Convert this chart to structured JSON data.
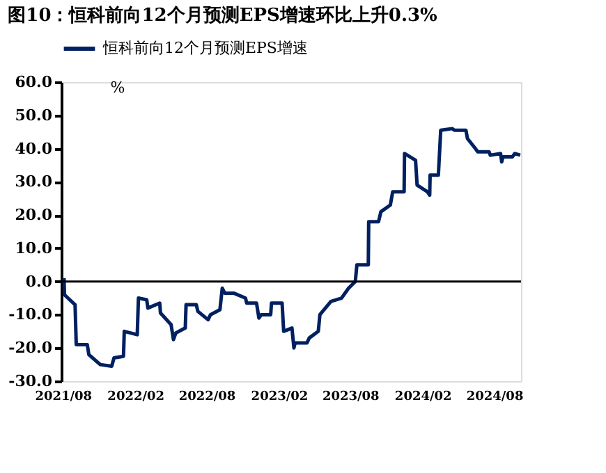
{
  "chart_data": {
    "type": "line",
    "title": "图10：恒科前向12个月预测EPS增速环比上升0.3%",
    "ylabel": "%",
    "x": [
      "2021-08-04",
      "2021-08-05",
      "2021-09-01",
      "2021-09-04",
      "2021-10-02",
      "2021-10-06",
      "2021-11-04",
      "2021-12-03",
      "2021-12-09",
      "2022-01-02",
      "2022-01-04",
      "2022-02-06",
      "2022-02-09",
      "2022-03-02",
      "2022-03-05",
      "2022-04-04",
      "2022-04-06",
      "2022-05-03",
      "2022-05-09",
      "2022-05-15",
      "2022-06-08",
      "2022-06-10",
      "2022-07-06",
      "2022-07-10",
      "2022-08-05",
      "2022-08-11",
      "2022-09-04",
      "2022-09-10",
      "2022-09-16",
      "2022-10-09",
      "2022-11-08",
      "2022-11-11",
      "2022-12-06",
      "2022-12-12",
      "2022-12-18",
      "2023-01-11",
      "2023-01-13",
      "2023-02-09",
      "2023-02-13",
      "2023-03-06",
      "2023-03-11",
      "2023-03-14",
      "2023-04-13",
      "2023-04-19",
      "2023-05-12",
      "2023-05-16",
      "2023-06-13",
      "2023-07-10",
      "2023-07-28",
      "2023-08-14",
      "2023-08-18",
      "2023-09-16",
      "2023-09-17",
      "2023-10-12",
      "2023-10-18",
      "2023-11-11",
      "2023-11-17",
      "2023-12-16",
      "2023-12-17",
      "2024-01-14",
      "2024-01-18",
      "2024-02-13",
      "2024-02-19",
      "2024-02-20",
      "2024-03-12",
      "2024-03-18",
      "2024-04-16",
      "2024-04-22",
      "2024-05-21",
      "2024-05-25",
      "2024-06-14",
      "2024-06-20",
      "2024-07-19",
      "2024-07-22",
      "2024-08-17",
      "2024-08-20",
      "2024-08-23",
      "2024-09-16",
      "2024-09-22",
      "2024-10-06"
    ],
    "series": [
      {
        "name": "恒科前向12个月预测EPS增速",
        "color": "#002060",
        "values": [
          1.0,
          -4,
          -7,
          -19,
          -19,
          -22,
          -25,
          -25.5,
          -23,
          -22.5,
          -15,
          -16,
          -5,
          -5.5,
          -8,
          -6.5,
          -9.5,
          -13,
          -17.5,
          -15.5,
          -14,
          -7,
          -7,
          -9,
          -11.5,
          -10,
          -8.5,
          -2,
          -3.5,
          -3.5,
          -5,
          -6.5,
          -6.5,
          -11,
          -10,
          -10,
          -6.5,
          -6.5,
          -15,
          -14,
          -20,
          -18.5,
          -18.5,
          -17,
          -15,
          -10,
          -6,
          -5,
          -2,
          0,
          5,
          5,
          18,
          18,
          21,
          23,
          27,
          27,
          38.5,
          36.5,
          29,
          27,
          26,
          32,
          32,
          45.5,
          46,
          45.5,
          45.5,
          43,
          40,
          39,
          39,
          38,
          38.5,
          36,
          37.5,
          37.5,
          38.5,
          38
        ]
      }
    ],
    "xlim": [
      "2021-07-28",
      "2024-10-08"
    ],
    "xticks": [
      {
        "value": "2021-08-01",
        "label": "2021/08"
      },
      {
        "value": "2022-02-01",
        "label": "2022/02"
      },
      {
        "value": "2022-08-01",
        "label": "2022/08"
      },
      {
        "value": "2023-02-01",
        "label": "2023/02"
      },
      {
        "value": "2023-08-01",
        "label": "2023/08"
      },
      {
        "value": "2024-02-01",
        "label": "2024/02"
      },
      {
        "value": "2024-08-01",
        "label": "2024/08"
      }
    ],
    "ylim": [
      -30,
      60
    ],
    "yticks": [
      {
        "value": -30,
        "label": "-30.0"
      },
      {
        "value": -20,
        "label": "-20.0"
      },
      {
        "value": -10,
        "label": "-10.0"
      },
      {
        "value": 0,
        "label": "0.0"
      },
      {
        "value": 10,
        "label": "10.0"
      },
      {
        "value": 20,
        "label": "20.0"
      },
      {
        "value": 30,
        "label": "30.0"
      },
      {
        "value": 40,
        "label": "40.0"
      },
      {
        "value": 50,
        "label": "50.0"
      },
      {
        "value": 60,
        "label": "60.0"
      }
    ],
    "ref_lines": [
      {
        "axis": "y",
        "value": 0,
        "color": "#000000"
      }
    ],
    "grid": false,
    "legend": "top",
    "marker": "none",
    "line_style": "solid"
  }
}
